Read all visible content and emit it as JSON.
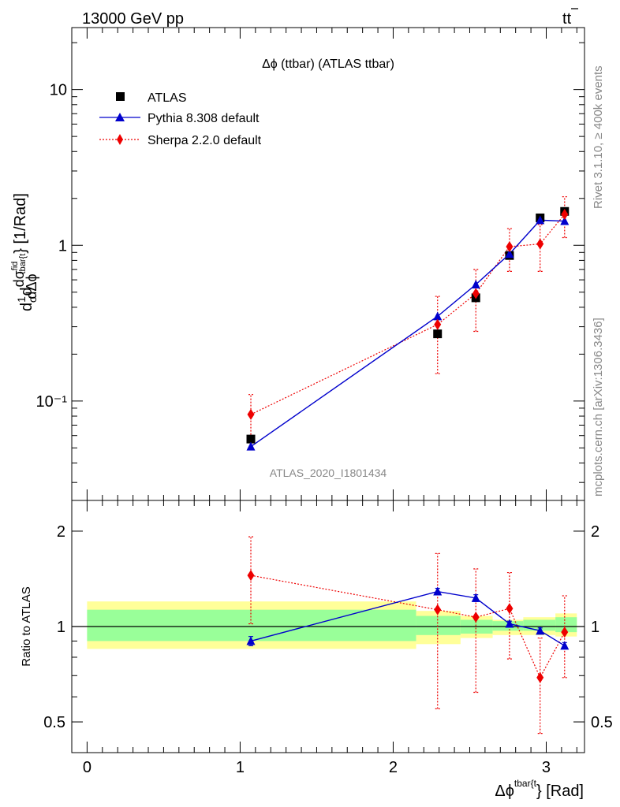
{
  "header": {
    "energy": "13000 GeV pp",
    "process_base": "tt",
    "process_bar": "t"
  },
  "side": {
    "rivet": "Rivet 3.1.10, ≥ 400k events",
    "mcplots": "mcplots.cern.ch [arXiv:1306.3436]"
  },
  "main_title": "Δϕ (ttbar) (ATLAS ttbar)",
  "watermark": "ATLAS_2020_I1801434",
  "ylabel_main": {
    "d": "d",
    "one": "1",
    "sigma_small": "σ",
    "dsigma": "dσ",
    "fid": "fid",
    "dphi": "dΔϕ",
    "sub": "tbar{t",
    "unit": "} [1/Rad]"
  },
  "ylabel_ratio": "Ratio to ATLAS",
  "xlabel": {
    "base": "Δϕ",
    "sup": "tbar{t",
    "rest": "} [Rad]"
  },
  "legend": [
    {
      "label": "ATLAS"
    },
    {
      "label": "Pythia 8.308 default"
    },
    {
      "label": "Sherpa 2.2.0 default"
    }
  ],
  "colors": {
    "atlas": "#000000",
    "pythia": "#0000cc",
    "sherpa": "#ee0000",
    "band_inner": "#99ff99",
    "band_outer": "#ffff99"
  },
  "chart_data": [
    {
      "type": "scatter",
      "title": "Δϕ (ttbar) (ATLAS ttbar)",
      "xlabel": "Δϕ^{tbar{t}} [Rad]",
      "ylabel": "d1/σ dσ^fid / dΔϕ_{tbar{t}} [1/Rad]",
      "yscale": "log",
      "xlim": [
        -0.1,
        3.25
      ],
      "ylim": [
        0.023,
        25
      ],
      "x_ticks": [
        "0",
        "1",
        "2",
        "3"
      ],
      "y_ticks": [
        "10⁻¹",
        "1",
        "10"
      ],
      "legend_position": "top-left",
      "series": [
        {
          "name": "ATLAS",
          "marker": "square",
          "x": [
            1.07,
            2.29,
            2.54,
            2.76,
            2.96,
            3.12
          ],
          "y": [
            0.057,
            0.27,
            0.46,
            0.86,
            1.5,
            1.65
          ]
        },
        {
          "name": "Pythia 8.308 default",
          "marker": "triangle",
          "line": "solid",
          "x": [
            1.07,
            2.29,
            2.54,
            2.76,
            2.96,
            3.12
          ],
          "y": [
            0.051,
            0.35,
            0.56,
            0.88,
            1.45,
            1.43
          ],
          "y_err": [
            0.002,
            0.01,
            0.015,
            0.02,
            0.03,
            0.03
          ]
        },
        {
          "name": "Sherpa 2.2.0 default",
          "marker": "diamond",
          "line": "dotted",
          "x": [
            1.07,
            2.29,
            2.54,
            2.76,
            2.96,
            3.12
          ],
          "y": [
            0.082,
            0.31,
            0.49,
            0.98,
            1.02,
            1.58
          ],
          "y_lo": [
            0.058,
            0.15,
            0.28,
            0.68,
            0.68,
            1.12
          ],
          "y_hi": [
            0.11,
            0.47,
            0.7,
            1.28,
            1.36,
            2.05
          ]
        }
      ]
    },
    {
      "type": "scatter",
      "ylabel": "Ratio to ATLAS",
      "yscale": "log",
      "ylim": [
        0.4,
        2.5
      ],
      "xlim": [
        -0.1,
        3.25
      ],
      "y_ticks": [
        "0.5",
        "1",
        "2"
      ],
      "x_ticks": [
        "0",
        "1",
        "2",
        "3"
      ],
      "reference_line": 1,
      "band_edges": [
        0,
        2.15,
        2.44,
        2.65,
        2.85,
        3.06,
        3.2
      ],
      "band_inner": [
        [
          0.9,
          1.13
        ],
        [
          0.94,
          1.08
        ],
        [
          0.95,
          1.05
        ],
        [
          0.97,
          1.04
        ],
        [
          0.97,
          1.05
        ],
        [
          0.96,
          1.07
        ]
      ],
      "band_outer": [
        [
          0.85,
          1.2
        ],
        [
          0.88,
          1.12
        ],
        [
          0.92,
          1.08
        ],
        [
          0.94,
          1.05
        ],
        [
          0.94,
          1.07
        ],
        [
          0.93,
          1.1
        ]
      ],
      "series": [
        {
          "name": "Pythia 8.308 default",
          "x": [
            1.07,
            2.29,
            2.54,
            2.76,
            2.96,
            3.12
          ],
          "y": [
            0.9,
            1.29,
            1.23,
            1.02,
            0.97,
            0.87
          ],
          "y_err": [
            0.03,
            0.03,
            0.03,
            0.02,
            0.02,
            0.02
          ]
        },
        {
          "name": "Sherpa 2.2.0 default",
          "x": [
            1.07,
            2.29,
            2.54,
            2.76,
            2.96,
            3.12
          ],
          "y": [
            1.45,
            1.13,
            1.07,
            1.14,
            0.69,
            0.96
          ],
          "y_lo": [
            1.02,
            0.55,
            0.62,
            0.79,
            0.46,
            0.69
          ],
          "y_hi": [
            1.92,
            1.7,
            1.52,
            1.48,
            0.92,
            1.25
          ]
        }
      ]
    }
  ]
}
